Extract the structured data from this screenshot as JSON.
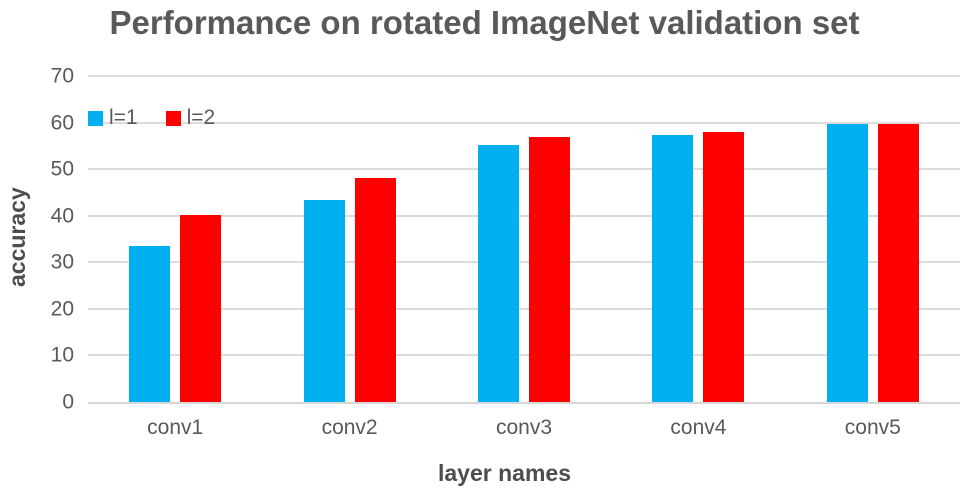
{
  "chart_data": {
    "type": "bar",
    "title": "Performance on rotated ImageNet validation set",
    "xlabel": "layer names",
    "ylabel": "accuracy",
    "categories": [
      "conv1",
      "conv2",
      "conv3",
      "conv4",
      "conv5"
    ],
    "series": [
      {
        "name": "l=1",
        "color": "#00B0F0",
        "values": [
          33.5,
          43.4,
          55.1,
          57.4,
          59.6
        ]
      },
      {
        "name": "l=2",
        "color": "#FF0000",
        "values": [
          40.1,
          48.1,
          56.9,
          57.9,
          59.6
        ]
      }
    ],
    "ylim": [
      0,
      70
    ],
    "yticks": [
      0,
      10,
      20,
      30,
      40,
      50,
      60,
      70
    ],
    "grid": true,
    "legend_position": "top-left-inside",
    "colors": {
      "text": "#595959",
      "title": "#595959",
      "gridline": "#DCDCDC",
      "axis_line": "#D6D6D6"
    }
  }
}
